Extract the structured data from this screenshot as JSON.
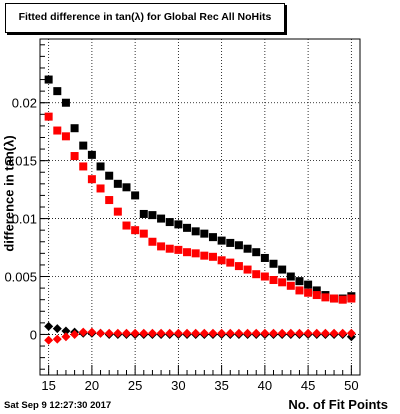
{
  "title": "Fitted difference in tan(λ) for Global Rec All NoHits",
  "timestamp": "Sat Sep  9 12:27:30 2017",
  "chart_data": {
    "type": "scatter",
    "title": "Fitted difference in tan(λ) for Global Rec All NoHits",
    "xlabel": "No. of Fit Points",
    "ylabel": "difference in tan(λ)",
    "xlim": [
      14,
      51
    ],
    "ylim": [
      -0.0035,
      0.0255
    ],
    "x_ticks": [
      15,
      20,
      25,
      30,
      35,
      40,
      45,
      50
    ],
    "y_ticks": [
      {
        "value": 0,
        "label": "0"
      },
      {
        "value": 0.005,
        "label": "0.005"
      },
      {
        "value": 0.01,
        "label": "0.01"
      },
      {
        "value": 0.015,
        "label": "0.015"
      },
      {
        "value": 0.02,
        "label": "0.02"
      }
    ],
    "grid": true,
    "series": [
      {
        "color": "#000000",
        "marker": "square",
        "x": [
          15,
          16,
          17,
          18,
          19,
          20,
          21,
          22,
          23,
          24,
          25,
          26,
          27,
          28,
          29,
          30,
          31,
          32,
          33,
          34,
          35,
          36,
          37,
          38,
          39,
          40,
          41,
          42,
          43,
          44,
          45,
          46,
          47,
          48,
          49,
          50
        ],
        "values": [
          0.022,
          0.021,
          0.02,
          0.0178,
          0.0163,
          0.0155,
          0.0145,
          0.0137,
          0.013,
          0.0127,
          0.012,
          0.0104,
          0.0103,
          0.01,
          0.0097,
          0.0095,
          0.0092,
          0.0089,
          0.0087,
          0.0084,
          0.0081,
          0.0079,
          0.0077,
          0.0074,
          0.0071,
          0.0066,
          0.0061,
          0.0056,
          0.005,
          0.0046,
          0.0043,
          0.0038,
          0.0034,
          0.0031,
          0.0031,
          0.0033
        ]
      },
      {
        "color": "#ff0000",
        "marker": "square",
        "x": [
          15,
          16,
          17,
          18,
          19,
          20,
          21,
          22,
          23,
          24,
          25,
          26,
          27,
          28,
          29,
          30,
          31,
          32,
          33,
          34,
          35,
          36,
          37,
          38,
          39,
          40,
          41,
          42,
          43,
          44,
          45,
          46,
          47,
          48,
          49,
          50
        ],
        "values": [
          0.0188,
          0.0176,
          0.0171,
          0.0154,
          0.0145,
          0.0134,
          0.0126,
          0.0116,
          0.0106,
          0.0094,
          0.009,
          0.0087,
          0.008,
          0.0076,
          0.0074,
          0.0073,
          0.0071,
          0.007,
          0.0068,
          0.0067,
          0.0064,
          0.0062,
          0.0059,
          0.0056,
          0.0052,
          0.005,
          0.0047,
          0.0045,
          0.0042,
          0.0038,
          0.0036,
          0.0034,
          0.0032,
          0.0031,
          0.003,
          0.0031
        ]
      },
      {
        "color": "#000000",
        "marker": "diamond",
        "x": [
          15,
          16,
          17,
          18,
          19,
          20,
          21,
          22,
          23,
          24,
          25,
          26,
          27,
          28,
          29,
          30,
          31,
          32,
          33,
          34,
          35,
          36,
          37,
          38,
          39,
          40,
          41,
          42,
          43,
          44,
          45,
          46,
          47,
          48,
          49,
          50
        ],
        "values": [
          0.0007,
          0.0005,
          0.0003,
          0.0002,
          0.0001,
          0.0001,
          0.0001,
          0.0,
          0.0,
          0.0,
          0.0,
          0.0,
          0.0,
          0.0,
          0.0,
          0.0,
          0.0,
          0.0,
          0.0,
          0.0,
          0.0,
          0.0,
          0.0,
          0.0,
          0.0,
          0.0,
          0.0,
          0.0,
          0.0,
          0.0,
          0.0,
          0.0,
          0.0,
          0.0,
          0.0,
          -0.0002
        ]
      },
      {
        "color": "#ff0000",
        "marker": "diamond",
        "x": [
          15,
          16,
          17,
          18,
          19,
          20,
          21,
          22,
          23,
          24,
          25,
          26,
          27,
          28,
          29,
          30,
          31,
          32,
          33,
          34,
          35,
          36,
          37,
          38,
          39,
          40,
          41,
          42,
          43,
          44,
          45,
          46,
          47,
          48,
          49,
          50
        ],
        "values": [
          -0.0005,
          -0.0004,
          -0.0002,
          0.0,
          0.0002,
          0.0002,
          0.0001,
          0.0001,
          0.0001,
          0.0001,
          0.0001,
          0.0001,
          0.0001,
          0.0001,
          0.0001,
          0.0001,
          0.0001,
          0.0001,
          0.0001,
          0.0001,
          0.0001,
          0.0001,
          0.0001,
          0.0001,
          0.0001,
          0.0001,
          0.0001,
          0.0001,
          0.0001,
          0.0001,
          0.0001,
          0.0001,
          0.0001,
          0.0001,
          0.0001,
          0.0001
        ]
      }
    ]
  }
}
